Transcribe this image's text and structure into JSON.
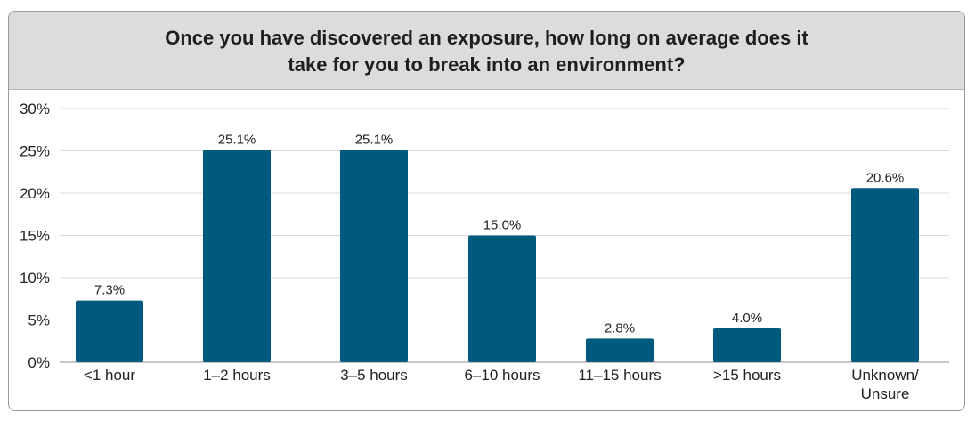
{
  "chart_data": {
    "type": "bar",
    "title": "Once you have discovered an exposure, how long on average does it take for you to break into an environment?",
    "categories": [
      "<1 hour",
      "1–2 hours",
      "3–5 hours",
      "6–10 hours",
      "11–15 hours",
      ">15 hours",
      "Unknown/ Unsure"
    ],
    "values": [
      7.3,
      25.1,
      25.1,
      15.0,
      2.8,
      4.0,
      20.6
    ],
    "data_labels": [
      "7.3%",
      "25.1%",
      "25.1%",
      "15.0%",
      "2.8%",
      "4.0%",
      "20.6%"
    ],
    "ylim": [
      0,
      30
    ],
    "yticks": [
      0,
      5,
      10,
      15,
      20,
      25,
      30
    ],
    "ytick_labels": [
      "0%",
      "5%",
      "10%",
      "15%",
      "20%",
      "25%",
      "30%"
    ],
    "xlabel": "",
    "ylabel": "",
    "grid": true,
    "legend": "none",
    "bar_color": "#005a7e",
    "grid_color": "#d9d9d9",
    "title_bar_color": "#dcdcdc"
  }
}
